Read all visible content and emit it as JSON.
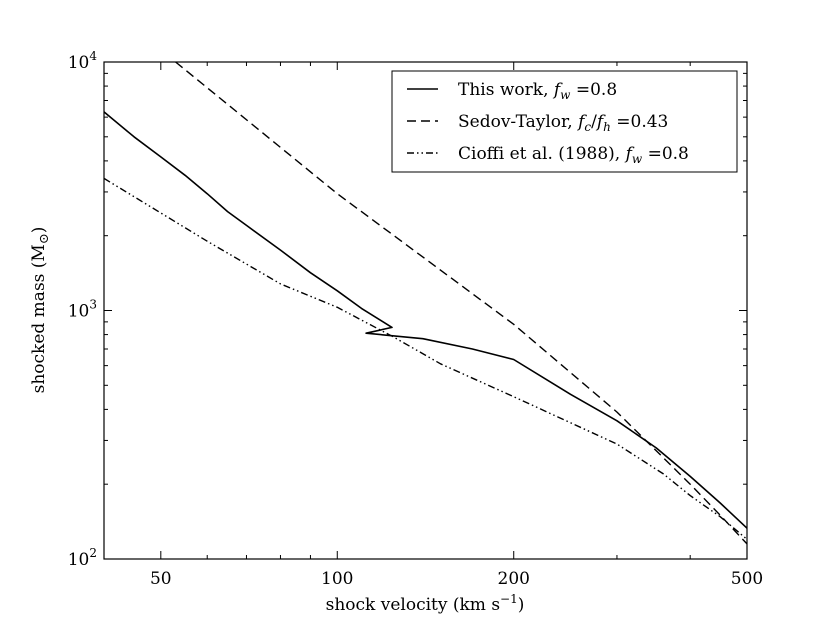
{
  "chart_data": {
    "type": "line",
    "title": "",
    "xlabel_prefix": "shock velocity (km s",
    "xlabel_exp": "−1",
    "xlabel_suffix": ")",
    "ylabel_prefix": "shocked mass (M",
    "ylabel_sub": "⊙",
    "ylabel_suffix": ")",
    "x_scale": "log",
    "y_scale": "log",
    "xlim": [
      40,
      500
    ],
    "ylim": [
      100,
      10000
    ],
    "x_ticks": [
      {
        "value": 50,
        "label": "50"
      },
      {
        "value": 100,
        "label": "100"
      },
      {
        "value": 200,
        "label": "200"
      },
      {
        "value": 500,
        "label": "500"
      }
    ],
    "y_ticks": [
      {
        "value": 100,
        "base": "10",
        "exp": "2"
      },
      {
        "value": 1000,
        "base": "10",
        "exp": "3"
      },
      {
        "value": 10000,
        "base": "10",
        "exp": "4"
      }
    ],
    "legend_position": "top-right",
    "series": [
      {
        "name": "This work",
        "label_text": "This work, ",
        "label_math_main": "f",
        "label_math_sub": "w",
        "label_value": " =0.8",
        "style": "solid",
        "points": [
          [
            40,
            6300
          ],
          [
            45,
            5000
          ],
          [
            50,
            4150
          ],
          [
            55,
            3500
          ],
          [
            60,
            2950
          ],
          [
            65,
            2500
          ],
          [
            70,
            2200
          ],
          [
            80,
            1750
          ],
          [
            90,
            1420
          ],
          [
            100,
            1200
          ],
          [
            110,
            1020
          ],
          [
            124,
            855
          ],
          [
            112,
            810
          ],
          [
            140,
            770
          ],
          [
            170,
            700
          ],
          [
            200,
            635
          ],
          [
            250,
            460
          ],
          [
            300,
            360
          ],
          [
            350,
            280
          ],
          [
            400,
            215
          ],
          [
            450,
            168
          ],
          [
            500,
            133
          ]
        ]
      },
      {
        "name": "Sedov-Taylor",
        "label_text": "Sedov-Taylor, ",
        "label_math_main": "f",
        "label_math_sub": "c",
        "label_mid": "/",
        "label_math_main2": "f",
        "label_math_sub2": "h",
        "label_value": " =0.43",
        "style": "dashed",
        "points": [
          [
            53,
            10000
          ],
          [
            100,
            2950
          ],
          [
            200,
            880
          ],
          [
            300,
            390
          ],
          [
            400,
            200
          ],
          [
            450,
            150
          ],
          [
            500,
            115
          ]
        ]
      },
      {
        "name": "Cioffi et al. (1988)",
        "label_text": "Cioffi et al. (1988), ",
        "label_math_main": "f",
        "label_math_sub": "w",
        "label_value": " =0.8",
        "style": "dashdotdot",
        "points": [
          [
            40,
            3400
          ],
          [
            60,
            1900
          ],
          [
            80,
            1280
          ],
          [
            100,
            1030
          ],
          [
            125,
            780
          ],
          [
            150,
            610
          ],
          [
            200,
            450
          ],
          [
            300,
            290
          ],
          [
            360,
            220
          ],
          [
            400,
            180
          ],
          [
            450,
            148
          ],
          [
            500,
            120
          ]
        ]
      }
    ]
  }
}
